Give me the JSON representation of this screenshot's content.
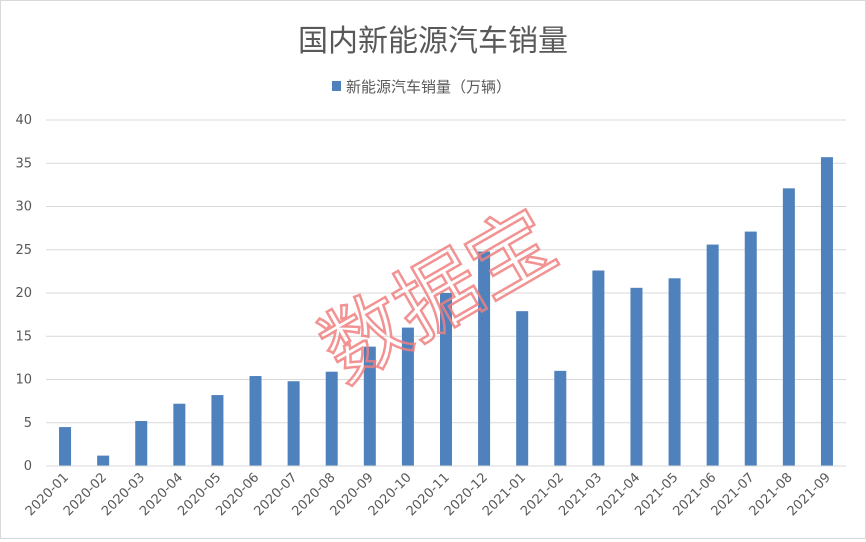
{
  "chart_data": {
    "type": "bar",
    "title": "国内新能源汽车销量",
    "xlabel": "",
    "ylabel": "",
    "legend": "top",
    "grid": true,
    "ylim": [
      0,
      40
    ],
    "yticks": [
      0,
      5,
      10,
      15,
      20,
      25,
      30,
      35,
      40
    ],
    "categories": [
      "2020-01",
      "2020-02",
      "2020-03",
      "2020-04",
      "2020-05",
      "2020-06",
      "2020-07",
      "2020-08",
      "2020-09",
      "2020-10",
      "2020-11",
      "2020-12",
      "2021-01",
      "2021-02",
      "2021-03",
      "2021-04",
      "2021-05",
      "2021-06",
      "2021-07",
      "2021-08",
      "2021-09"
    ],
    "series": [
      {
        "name": "新能源汽车销量（万辆）",
        "color": "#4f81bd",
        "values": [
          4.5,
          1.2,
          5.2,
          7.2,
          8.2,
          10.4,
          9.8,
          10.9,
          13.8,
          16.0,
          20.0,
          24.8,
          17.9,
          11.0,
          22.6,
          20.6,
          21.7,
          25.6,
          27.1,
          32.1,
          35.7
        ]
      }
    ]
  },
  "watermark": {
    "text": "数据宝",
    "color": "#f08080"
  }
}
